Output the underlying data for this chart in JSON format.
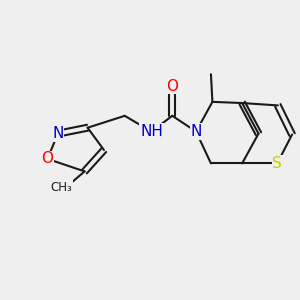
{
  "background_color": "#efefef",
  "bond_color": "#1a1a1a",
  "atom_colors": {
    "O": "#ff0000",
    "N": "#0000cc",
    "S": "#cccc00",
    "NH": "#0000cc"
  },
  "lw": 1.5,
  "font_size_atoms": 11,
  "figsize": [
    3.0,
    3.0
  ],
  "dpi": 100
}
